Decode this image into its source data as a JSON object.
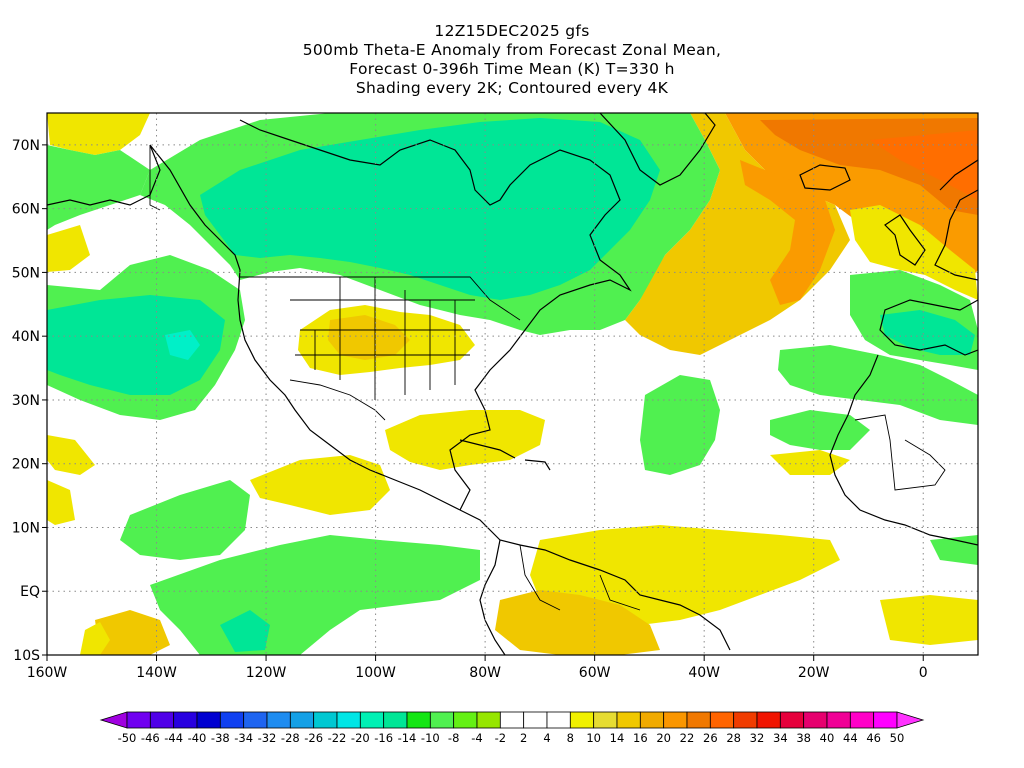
{
  "title": {
    "line1": "12Z15DEC2025 gfs",
    "line2": "500mb Theta-E Anomaly from Forecast Zonal Mean,",
    "line3": "Forecast 0-396h Time Mean (K) T=330 h",
    "line4": "Shading every 2K; Contoured every 4K"
  },
  "axes": {
    "lon_ticks": [
      {
        "lon": -160,
        "label": "160W"
      },
      {
        "lon": -140,
        "label": "140W"
      },
      {
        "lon": -120,
        "label": "120W"
      },
      {
        "lon": -100,
        "label": "100W"
      },
      {
        "lon": -80,
        "label": "80W"
      },
      {
        "lon": -60,
        "label": "60W"
      },
      {
        "lon": -40,
        "label": "40W"
      },
      {
        "lon": -20,
        "label": "20W"
      },
      {
        "lon": 0,
        "label": "0"
      }
    ],
    "lat_ticks": [
      {
        "lat": 70,
        "label": "70N"
      },
      {
        "lat": 60,
        "label": "60N"
      },
      {
        "lat": 50,
        "label": "50N"
      },
      {
        "lat": 40,
        "label": "40N"
      },
      {
        "lat": 30,
        "label": "30N"
      },
      {
        "lat": 20,
        "label": "20N"
      },
      {
        "lat": 10,
        "label": "10N"
      },
      {
        "lat": 0,
        "label": "EQ"
      },
      {
        "lat": -10,
        "label": "10S"
      }
    ],
    "lon_range": [
      -160,
      10
    ],
    "lat_range": [
      -10,
      75
    ],
    "grid": true
  },
  "colorbar": {
    "labels": [
      "-50",
      "-46",
      "-44",
      "-40",
      "-38",
      "-34",
      "-32",
      "-28",
      "-26",
      "-22",
      "-20",
      "-16",
      "-14",
      "-10",
      "-8",
      "-4",
      "-2",
      "2",
      "4",
      "8",
      "10",
      "14",
      "16",
      "20",
      "22",
      "26",
      "28",
      "32",
      "34",
      "38",
      "40",
      "44",
      "46",
      "50"
    ],
    "colors": [
      "#a000e0",
      "#7000f0",
      "#5000e8",
      "#2800e0",
      "#0000d0",
      "#1040f0",
      "#1e64f0",
      "#1e8cf0",
      "#14a0e6",
      "#00c8d2",
      "#00e6e6",
      "#00f0b4",
      "#00e696",
      "#14e614",
      "#50f050",
      "#64f014",
      "#96e600",
      "#ffffff",
      "#ffffff",
      "#ffffff",
      "#f0f000",
      "#e6dc32",
      "#f0c800",
      "#f0aa00",
      "#fa9600",
      "#f07800",
      "#ff6400",
      "#f03c00",
      "#f01400",
      "#e6003c",
      "#e6006e",
      "#f00096",
      "#ff00c8",
      "#ff00ff",
      "#ff32ff"
    ]
  }
}
